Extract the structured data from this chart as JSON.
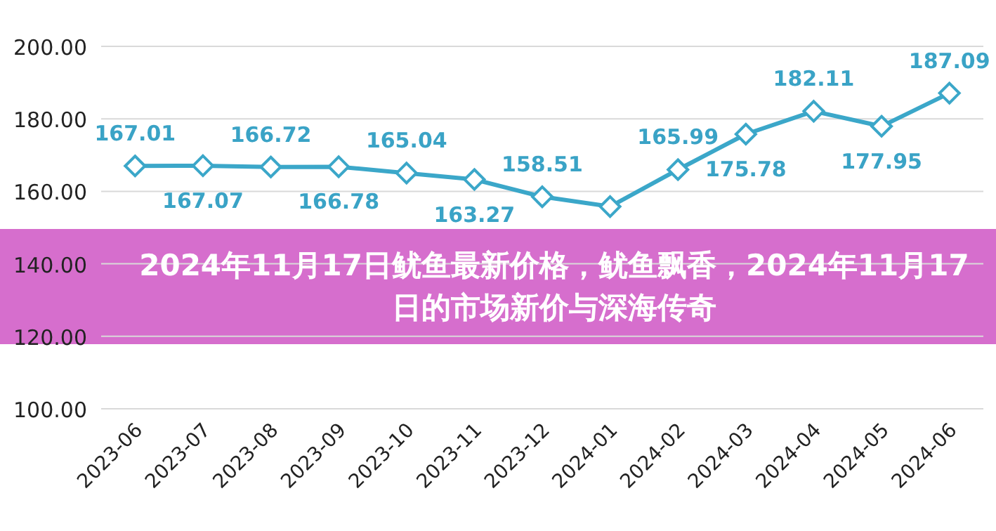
{
  "chart_data": {
    "type": "line",
    "title": "2024年11月17日鱿鱼最新价格，鱿鱼飘香，2024年11月17日的市场新价与深海传奇",
    "categories": [
      "2023-06",
      "2023-07",
      "2023-08",
      "2023-09",
      "2023-10",
      "2023-11",
      "2023-12",
      "2024-01",
      "2024-02",
      "2024-03",
      "2024-04",
      "2024-05",
      "2024-06"
    ],
    "series": [
      {
        "color": "#3ba7c9",
        "values": [
          167.01,
          167.07,
          166.72,
          166.78,
          165.04,
          163.27,
          158.51,
          155.8,
          165.99,
          175.78,
          182.11,
          177.95,
          187.09
        ],
        "value_labels": [
          "167.01",
          "167.07",
          "166.72",
          "166.78",
          "165.04",
          "163.27",
          "158.51",
          null,
          "165.99",
          "175.78",
          "182.11",
          "177.95",
          "187.09"
        ]
      }
    ],
    "ylim": [
      100,
      200
    ],
    "yticks": [
      {
        "value": 100,
        "label": "100.00"
      },
      {
        "value": 120,
        "label": "120.00"
      },
      {
        "value": 140,
        "label": "140.00"
      },
      {
        "value": 160,
        "label": "160.00"
      },
      {
        "value": 180,
        "label": "180.00"
      },
      {
        "value": 200,
        "label": "200.00"
      }
    ],
    "grid": "y",
    "marker": "diamond",
    "line_style": "solid",
    "legend": false
  }
}
